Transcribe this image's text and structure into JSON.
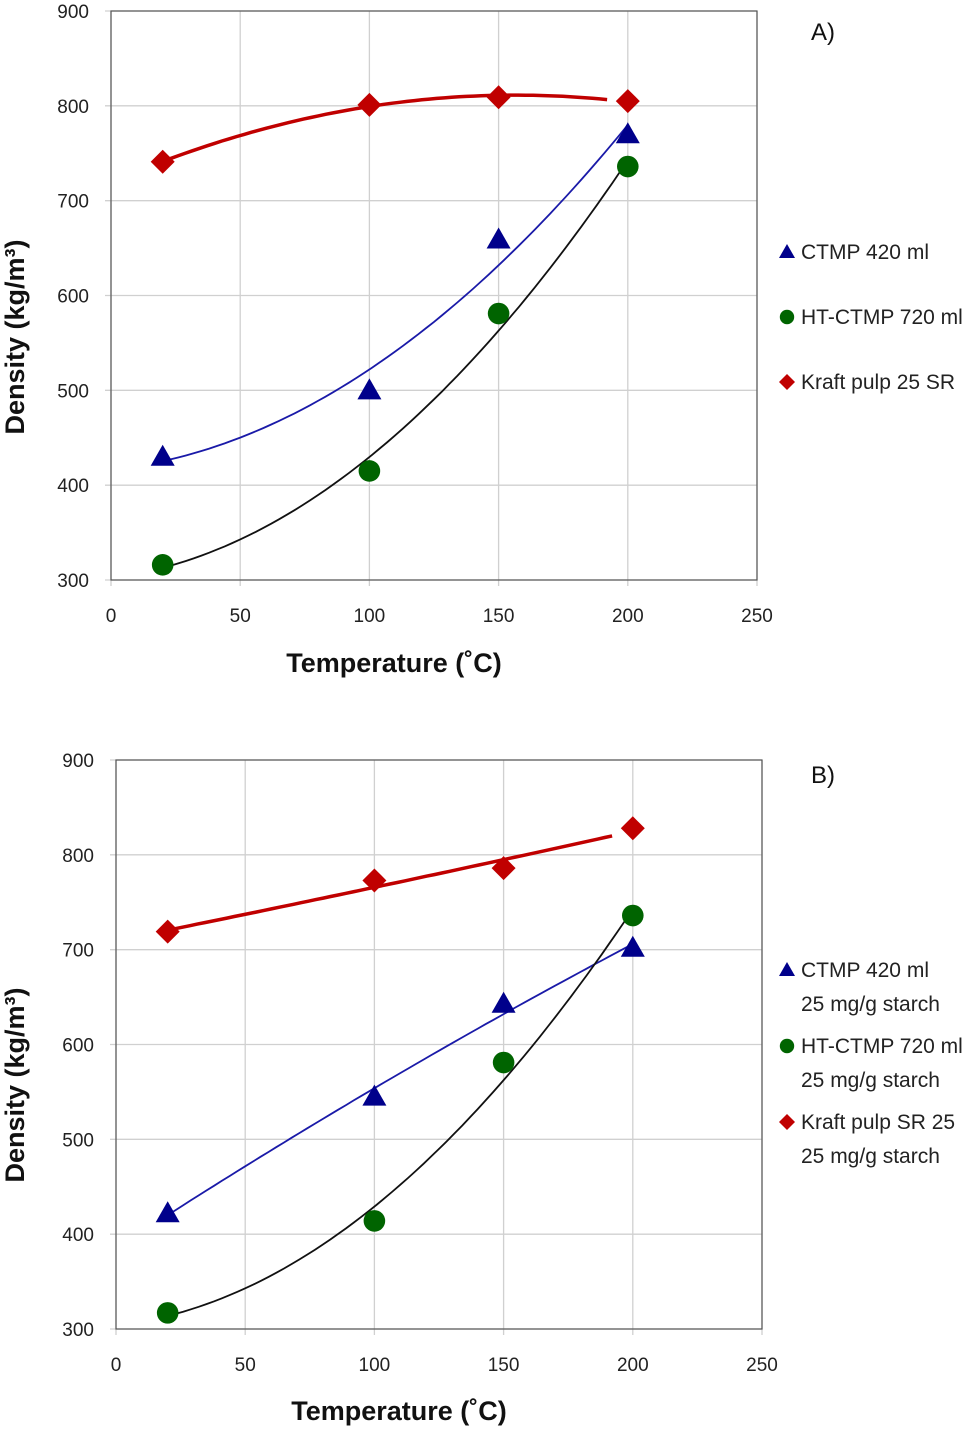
{
  "chart_data": [
    {
      "type": "scatter",
      "panel_label": "A)",
      "xlabel": "Temperature (˚C)",
      "ylabel": "Density (kg/m³)",
      "xlim": [
        0,
        250
      ],
      "ylim": [
        300,
        900
      ],
      "xticks": [
        "0",
        "50",
        "100",
        "150",
        "200",
        "250"
      ],
      "yticks": [
        "300",
        "400",
        "500",
        "600",
        "700",
        "800",
        "900"
      ],
      "grid": true,
      "legend_position": "right",
      "series": [
        {
          "name": "CTMP 420 ml",
          "name_line2": "",
          "marker": "triangle",
          "color": "#00008B",
          "line_color": "#1a1aa8",
          "x": [
            20,
            100,
            150,
            200
          ],
          "y": [
            430,
            500,
            659,
            770
          ]
        },
        {
          "name": "HT-CTMP 720 ml",
          "name_line2": "",
          "marker": "circle",
          "color": "#006400",
          "line_color": "#111111",
          "x": [
            20,
            100,
            150,
            200
          ],
          "y": [
            316,
            415,
            581,
            736
          ]
        },
        {
          "name": "Kraft pulp 25 SR",
          "name_line2": "",
          "marker": "diamond",
          "color": "#C00000",
          "line_color": "#C00000",
          "x": [
            20,
            100,
            150,
            200
          ],
          "y": [
            741,
            801,
            809,
            805
          ]
        }
      ]
    },
    {
      "type": "scatter",
      "panel_label": "B)",
      "xlabel": "Temperature (˚C)",
      "ylabel": "Density (kg/m³)",
      "xlim": [
        0,
        250
      ],
      "ylim": [
        300,
        900
      ],
      "xticks": [
        "0",
        "50",
        "100",
        "150",
        "200",
        "250"
      ],
      "yticks": [
        "300",
        "400",
        "500",
        "600",
        "700",
        "800",
        "900"
      ],
      "grid": true,
      "legend_position": "right",
      "series": [
        {
          "name": "CTMP 420 ml",
          "name_line2": "25 mg/g starch",
          "marker": "triangle",
          "color": "#00008B",
          "line_color": "#1a1aa8",
          "x": [
            20,
            100,
            150,
            200
          ],
          "y": [
            422,
            545,
            643,
            702
          ]
        },
        {
          "name": "HT-CTMP 720 ml",
          "name_line2": "25 mg/g starch",
          "marker": "circle",
          "color": "#006400",
          "line_color": "#111111",
          "x": [
            20,
            100,
            150,
            200
          ],
          "y": [
            317,
            414,
            581,
            736
          ]
        },
        {
          "name": "Kraft pulp SR 25",
          "name_line2": "25 mg/g starch",
          "marker": "diamond",
          "color": "#C00000",
          "line_color": "#C00000",
          "x": [
            20,
            100,
            150,
            200
          ],
          "y": [
            719,
            773,
            786,
            828
          ]
        }
      ]
    }
  ]
}
